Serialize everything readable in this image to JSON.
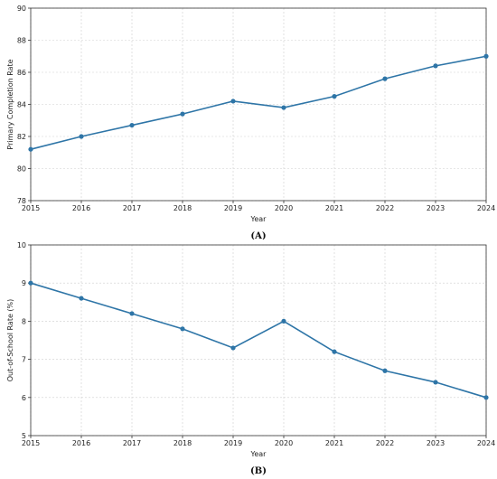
{
  "chart_data": [
    {
      "type": "line",
      "caption": "(A)",
      "xlabel": "Year",
      "ylabel": "Primary Completion Rate",
      "x": [
        2015,
        2016,
        2017,
        2018,
        2019,
        2020,
        2021,
        2022,
        2023,
        2024
      ],
      "xlim": [
        2015,
        2024
      ],
      "ylim": [
        78,
        90
      ],
      "yticks": [
        78,
        80,
        82,
        84,
        86,
        88,
        90
      ],
      "grid": true,
      "series": [
        {
          "values": [
            81.2,
            82.0,
            82.7,
            83.4,
            84.2,
            83.8,
            84.5,
            85.6,
            86.4,
            87.0
          ],
          "color": "#2e75a7"
        }
      ]
    },
    {
      "type": "line",
      "caption": "(B)",
      "xlabel": "Year",
      "ylabel": "Out-of-School Rate (%)",
      "x": [
        2015,
        2016,
        2017,
        2018,
        2019,
        2020,
        2021,
        2022,
        2023,
        2024
      ],
      "xlim": [
        2015,
        2024
      ],
      "ylim": [
        5,
        10
      ],
      "yticks": [
        5,
        6,
        7,
        8,
        9,
        10
      ],
      "grid": true,
      "series": [
        {
          "values": [
            9.0,
            8.6,
            8.2,
            7.8,
            7.3,
            8.0,
            7.2,
            6.7,
            6.4,
            6.0
          ],
          "color": "#2e75a7"
        }
      ]
    }
  ]
}
